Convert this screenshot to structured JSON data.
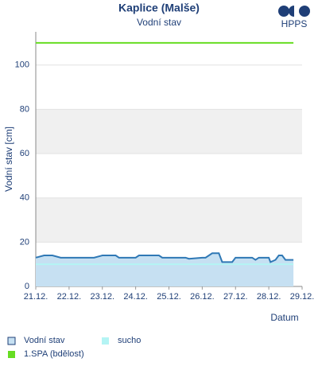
{
  "chart_data": {
    "type": "line",
    "title": "Kaplice (Malše)",
    "subtitle": "Vodní stav",
    "logo": "HPPS",
    "y_label": "Vodní stav [cm]",
    "x_label": "Datum",
    "xlim": [
      21,
      29
    ],
    "ylim": [
      0,
      115
    ],
    "xticks": [
      {
        "value": 21,
        "label": "21.12."
      },
      {
        "value": 22,
        "label": "22.12."
      },
      {
        "value": 23,
        "label": "23.12."
      },
      {
        "value": 24,
        "label": "24.12."
      },
      {
        "value": 25,
        "label": "25.12."
      },
      {
        "value": 26,
        "label": "26.12."
      },
      {
        "value": 27,
        "label": "27.12."
      },
      {
        "value": 28,
        "label": "28.12."
      },
      {
        "value": 29,
        "label": "29.12."
      }
    ],
    "yticks": [
      0,
      20,
      40,
      60,
      80,
      100
    ],
    "grid": true,
    "grid_bands": true,
    "series": [
      {
        "name": "Vodní stav",
        "color": "#2f78b5",
        "fill": "#c6e0f2",
        "x": [
          21.0,
          21.25,
          21.5,
          21.75,
          22.0,
          22.5,
          22.75,
          23.0,
          23.4,
          23.5,
          24.0,
          24.1,
          24.7,
          24.8,
          25.5,
          25.6,
          26.0,
          26.1,
          26.3,
          26.5,
          26.6,
          26.9,
          27.0,
          27.5,
          27.6,
          27.7,
          28.0,
          28.05,
          28.2,
          28.3,
          28.4,
          28.5,
          28.6,
          28.74
        ],
        "values": [
          13,
          14,
          14,
          13,
          13,
          13,
          13,
          14,
          14,
          13,
          13,
          14,
          14,
          13,
          13,
          12.5,
          13,
          13,
          15,
          15,
          11,
          11,
          13,
          13,
          12,
          13,
          13,
          11,
          12,
          14,
          14,
          12,
          12,
          12
        ]
      },
      {
        "name": "sucho",
        "color": "#b4f4f4",
        "x": [
          21.0,
          28.74
        ],
        "values": [
          10,
          10
        ]
      },
      {
        "name": "1.SPA (bdělost)",
        "color": "#66dd22",
        "x": [
          21.0,
          28.74
        ],
        "values": [
          110,
          110
        ]
      }
    ]
  }
}
